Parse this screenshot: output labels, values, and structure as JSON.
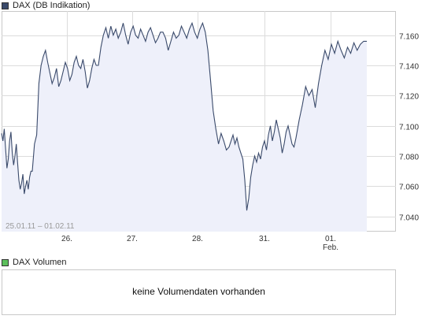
{
  "price_legend": {
    "label": "DAX (DB Indikation)",
    "color": "#3a4a6b"
  },
  "volume_legend": {
    "label": "DAX Volumen",
    "color": "#5cbf5c"
  },
  "volume_panel": {
    "message": "keine Volumendaten vorhanden"
  },
  "chart_data": {
    "type": "area",
    "title": "DAX (DB Indikation)",
    "date_range": "25.01.11 – 01.02.11",
    "x_tick_labels": [
      "26.",
      "27.",
      "28.",
      "31.",
      "01.\nFeb."
    ],
    "y_tick_labels": [
      "7.040",
      "7.060",
      "7.080",
      "7.100",
      "7.120",
      "7.140",
      "7.160"
    ],
    "ylim": [
      7030,
      7176
    ],
    "grid": true,
    "line_color": "#3a4a6b",
    "fill_color": "#eef0fa",
    "series": [
      {
        "days": [
          {
            "day": "25.01.11",
            "values": [
              7095,
              7090,
              7098,
              7085,
              7072,
              7078,
              7090,
              7096,
              7082,
              7074,
              7080,
              7088,
              7076,
              7064,
              7058,
              7062,
              7068,
              7055,
              7060,
              7064,
              7058,
              7066,
              7070
            ]
          },
          {
            "day": "26.01.11",
            "values": [
              7070,
              7088,
              7094,
              7128,
              7140,
              7146,
              7150,
              7142,
              7135,
              7128,
              7132,
              7138,
              7126,
              7130,
              7136,
              7142,
              7138,
              7130,
              7134,
              7142,
              7146,
              7140,
              7138,
              7144,
              7136,
              7125,
              7130,
              7138,
              7144,
              7140
            ]
          },
          {
            "day": "27.01.11",
            "values": [
              7140,
              7152,
              7160,
              7165,
              7158,
              7166,
              7160,
              7164,
              7158,
              7162,
              7168,
              7160,
              7154,
              7162,
              7166,
              7160,
              7158,
              7164,
              7160,
              7156,
              7162,
              7165,
              7160,
              7155,
              7158,
              7162
            ]
          },
          {
            "day": "28.01.11",
            "values": [
              7162,
              7158,
              7150,
              7156,
              7162,
              7158,
              7160,
              7166,
              7162,
              7158,
              7164,
              7168,
              7162,
              7158,
              7164,
              7168,
              7162,
              7150,
              7130,
              7110,
              7098,
              7088,
              7095,
              7090,
              7084
            ]
          },
          {
            "day": "31.01.11",
            "values": [
              7086,
              7090,
              7094,
              7088,
              7092,
              7086,
              7082,
              7078,
              7064,
              7044,
              7052,
              7066,
              7074,
              7080,
              7076,
              7082,
              7078,
              7086,
              7090,
              7084,
              7094,
              7100,
              7090,
              7096,
              7104,
              7098,
              7092,
              7082,
              7088,
              7096,
              7100,
              7094,
              7088,
              7086
            ]
          },
          {
            "day": "01.02.11",
            "values": [
              7092,
              7104,
              7114,
              7126,
              7120,
              7124,
              7112,
              7128,
              7140,
              7150,
              7144,
              7154,
              7148,
              7156,
              7150,
              7145,
              7152,
              7148,
              7155,
              7150,
              7154,
              7156
            ]
          }
        ]
      }
    ]
  }
}
